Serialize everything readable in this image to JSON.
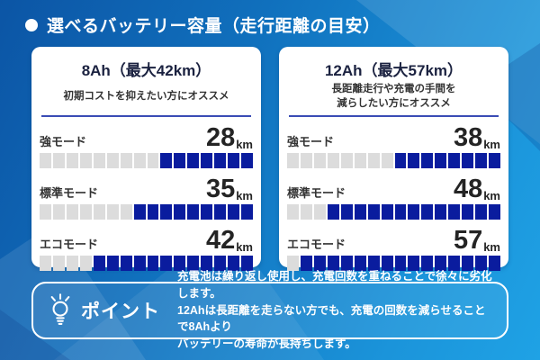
{
  "header": {
    "title": "選べるバッテリー容量（走行距離の目安）"
  },
  "colors": {
    "bar_filled": "#0a1c9e",
    "bar_empty": "#dcdcdc",
    "card_divider": "#3a4cb5",
    "background_blue": "#1583cd",
    "text_dark": "#242424",
    "text_white": "#ffffff"
  },
  "cards": [
    {
      "title": "8Ah（最大42km）",
      "subtitle_lines": [
        "初期コストを抑えたい方にオススメ"
      ],
      "rows": [
        {
          "label": "強モード",
          "value": "28",
          "unit": "km",
          "filled": 7,
          "total": 16
        },
        {
          "label": "標準モード",
          "value": "35",
          "unit": "km",
          "filled": 9,
          "total": 16
        },
        {
          "label": "エコモード",
          "value": "42",
          "unit": "km",
          "filled": 12,
          "total": 16
        }
      ]
    },
    {
      "title": "12Ah（最大57km）",
      "subtitle_lines": [
        "長距離走行や充電の手間を",
        "減らしたい方にオススメ"
      ],
      "rows": [
        {
          "label": "強モード",
          "value": "38",
          "unit": "km",
          "filled": 8,
          "total": 16
        },
        {
          "label": "標準モード",
          "value": "48",
          "unit": "km",
          "filled": 13,
          "total": 16
        },
        {
          "label": "エコモード",
          "value": "57",
          "unit": "km",
          "filled": 15,
          "total": 16
        }
      ]
    }
  ],
  "point": {
    "label": "ポイント",
    "lines": [
      "充電池は繰り返し使用し、充電回数を重ねることで徐々に劣化します。",
      "12Ahは長距離を走らない方でも、充電の回数を減らせることで8Ahより",
      "バッテリーの寿命が長持ちします。"
    ]
  },
  "chart_data": [
    {
      "type": "bar",
      "title": "8Ah（最大42km）",
      "subtitle": "初期コストを抑えたい方にオススメ",
      "categories": [
        "強モード",
        "標準モード",
        "エコモード"
      ],
      "values": [
        28,
        35,
        42
      ],
      "unit": "km",
      "xlabel": "",
      "ylabel": "走行距離",
      "segments_total": 16,
      "segments_filled": [
        7,
        9,
        12
      ],
      "fill_direction": "right"
    },
    {
      "type": "bar",
      "title": "12Ah（最大57km）",
      "subtitle": "長距離走行や充電の手間を減らしたい方にオススメ",
      "categories": [
        "強モード",
        "標準モード",
        "エコモード"
      ],
      "values": [
        38,
        48,
        57
      ],
      "unit": "km",
      "xlabel": "",
      "ylabel": "走行距離",
      "segments_total": 16,
      "segments_filled": [
        8,
        13,
        15
      ],
      "fill_direction": "right"
    }
  ]
}
